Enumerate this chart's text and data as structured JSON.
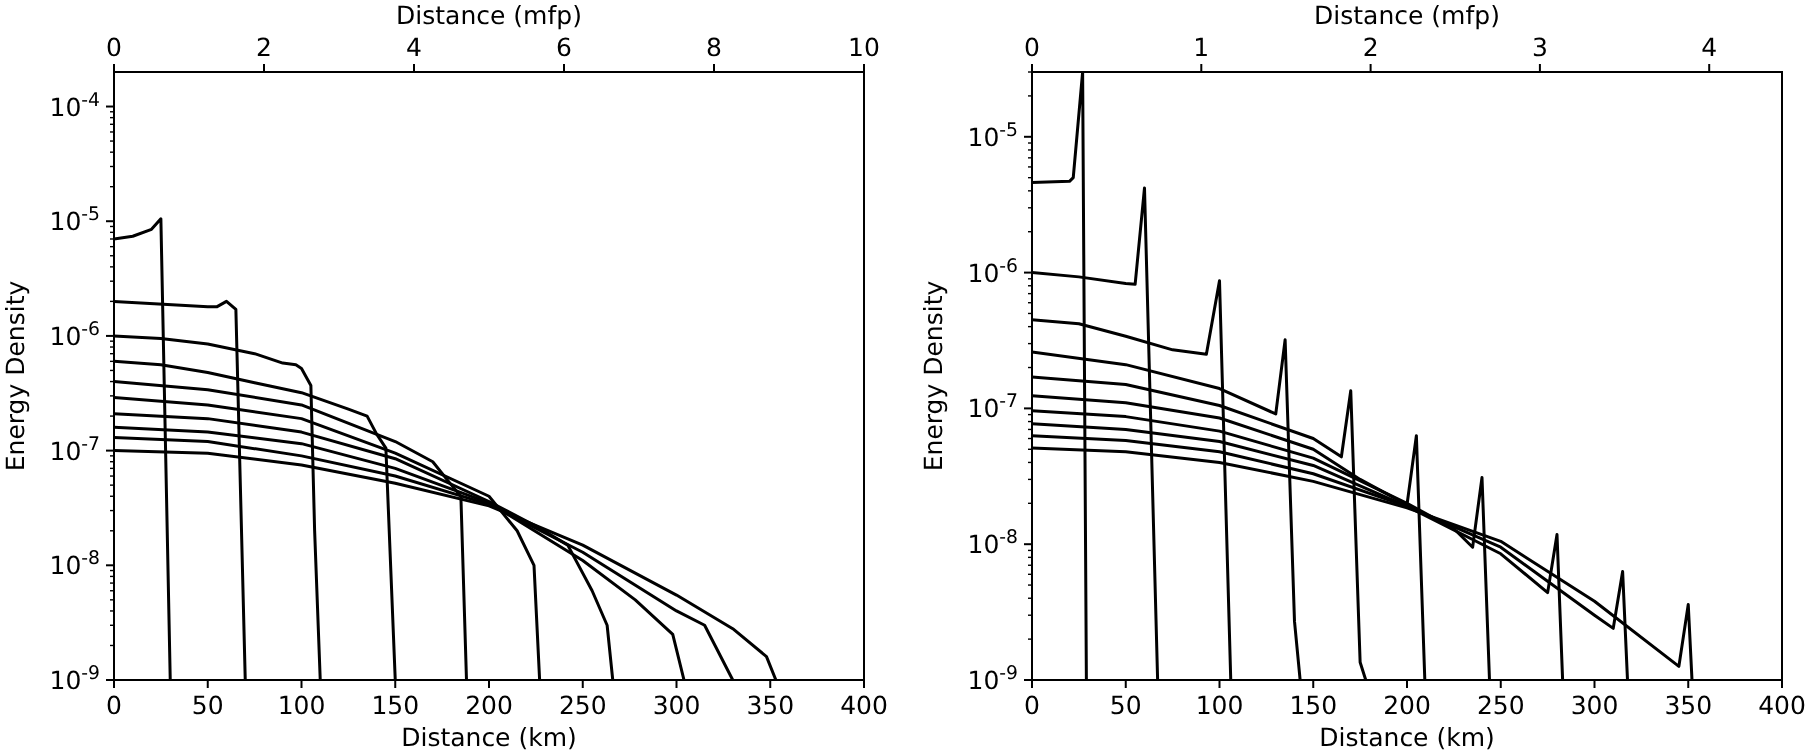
{
  "chart_data": [
    {
      "type": "line",
      "xlabel": "Distance (km)",
      "ylabel": "Energy Density",
      "x2label": "Distance (mfp)",
      "log": "y",
      "grid": false,
      "marker": "none",
      "line_style": "solid",
      "xlim": [
        0,
        400
      ],
      "xticks": [
        0,
        50,
        100,
        150,
        200,
        250,
        300,
        350,
        400
      ],
      "x2lim": [
        0,
        10
      ],
      "x2ticks": [
        0,
        2,
        4,
        6,
        8,
        10
      ],
      "ylim": [
        1e-09,
        0.0002
      ],
      "yticks": [
        {
          "value": 1e-09,
          "label": "10$^{-9}$"
        },
        {
          "value": 1e-08,
          "label": "10$^{-8}$"
        },
        {
          "value": 1e-07,
          "label": "10$^{-7}$"
        },
        {
          "value": 1e-06,
          "label": "10$^{-6}$"
        },
        {
          "value": 1e-05,
          "label": "10$^{-5}$"
        },
        {
          "value": 0.0001,
          "label": "10$^{-4}$"
        },
        {
          "value": 2e-09,
          "label": null
        },
        {
          "value": 3e-09,
          "label": null
        },
        {
          "value": 4e-09,
          "label": null
        },
        {
          "value": 5e-09,
          "label": null
        },
        {
          "value": 6e-09,
          "label": null
        },
        {
          "value": 7e-09,
          "label": null
        },
        {
          "value": 8e-09,
          "label": null
        },
        {
          "value": 9e-09,
          "label": null
        },
        {
          "value": 2e-08,
          "label": null
        },
        {
          "value": 3e-08,
          "label": null
        },
        {
          "value": 4e-08,
          "label": null
        },
        {
          "value": 5e-08,
          "label": null
        },
        {
          "value": 6e-08,
          "label": null
        },
        {
          "value": 7e-08,
          "label": null
        },
        {
          "value": 8e-08,
          "label": null
        },
        {
          "value": 9e-08,
          "label": null
        },
        {
          "value": 2e-07,
          "label": null
        },
        {
          "value": 3e-07,
          "label": null
        },
        {
          "value": 4e-07,
          "label": null
        },
        {
          "value": 5e-07,
          "label": null
        },
        {
          "value": 6e-07,
          "label": null
        },
        {
          "value": 7e-07,
          "label": null
        },
        {
          "value": 8e-07,
          "label": null
        },
        {
          "value": 9e-07,
          "label": null
        },
        {
          "value": 2e-06,
          "label": null
        },
        {
          "value": 3e-06,
          "label": null
        },
        {
          "value": 4e-06,
          "label": null
        },
        {
          "value": 5e-06,
          "label": null
        },
        {
          "value": 6e-06,
          "label": null
        },
        {
          "value": 7e-06,
          "label": null
        },
        {
          "value": 8e-06,
          "label": null
        },
        {
          "value": 9e-06,
          "label": null
        },
        {
          "value": 2e-05,
          "label": null
        },
        {
          "value": 3e-05,
          "label": null
        },
        {
          "value": 4e-05,
          "label": null
        },
        {
          "value": 5e-05,
          "label": null
        },
        {
          "value": 6e-05,
          "label": null
        },
        {
          "value": 7e-05,
          "label": null
        },
        {
          "value": 8e-05,
          "label": null
        },
        {
          "value": 9e-05,
          "label": null
        }
      ],
      "series": [
        {
          "color": "#000000",
          "x": [
            0,
            10,
            20,
            25,
            30
          ],
          "values": [
            7e-06,
            7.4e-06,
            8.5e-06,
            1.05e-05,
            1e-09
          ]
        },
        {
          "color": "#000000",
          "x": [
            0,
            50,
            55,
            60,
            65,
            68,
            70
          ],
          "values": [
            2e-06,
            1.8e-06,
            1.8e-06,
            2e-06,
            1.7e-06,
            2e-08,
            1e-09
          ]
        },
        {
          "color": "#000000",
          "x": [
            0,
            25,
            50,
            75,
            90,
            97,
            100,
            105,
            107,
            110
          ],
          "values": [
            1e-06,
            9.5e-07,
            8.5e-07,
            7e-07,
            5.8e-07,
            5.6e-07,
            5.2e-07,
            3.7e-07,
            2e-08,
            1e-09
          ]
        },
        {
          "color": "#000000",
          "x": [
            0,
            25,
            50,
            75,
            100,
            125,
            135,
            140,
            145,
            150
          ],
          "values": [
            6e-07,
            5.6e-07,
            4.8e-07,
            3.9e-07,
            3.2e-07,
            2.3e-07,
            2e-07,
            1.4e-07,
            1.05e-07,
            1e-09
          ]
        },
        {
          "color": "#000000",
          "x": [
            0,
            50,
            100,
            150,
            170,
            180,
            185,
            188
          ],
          "values": [
            4e-07,
            3.4e-07,
            2.5e-07,
            1.2e-07,
            8e-08,
            5e-08,
            4e-08,
            1e-09
          ]
        },
        {
          "color": "#000000",
          "x": [
            0,
            50,
            100,
            150,
            200,
            215,
            224,
            227
          ],
          "values": [
            2.9e-07,
            2.5e-07,
            1.9e-07,
            9.5e-08,
            4e-08,
            2e-08,
            1e-08,
            1e-09
          ]
        },
        {
          "color": "#000000",
          "x": [
            0,
            50,
            100,
            150,
            200,
            225,
            242,
            255,
            263,
            266
          ],
          "values": [
            2.1e-07,
            1.9e-07,
            1.45e-07,
            8.5e-08,
            3.6e-08,
            2.2e-08,
            1.5e-08,
            6e-09,
            3e-09,
            1e-09
          ]
        },
        {
          "color": "#000000",
          "x": [
            0,
            50,
            100,
            150,
            200,
            250,
            278,
            298,
            304
          ],
          "values": [
            1.6e-07,
            1.45e-07,
            1.15e-07,
            7e-08,
            3.5e-08,
            1.1e-08,
            5e-09,
            2.5e-09,
            1e-09
          ]
        },
        {
          "color": "#000000",
          "x": [
            0,
            50,
            100,
            150,
            200,
            250,
            300,
            315,
            330
          ],
          "values": [
            1.3e-07,
            1.2e-07,
            9e-08,
            6e-08,
            3.4e-08,
            1.3e-08,
            4e-09,
            3e-09,
            1e-09
          ]
        },
        {
          "color": "#000000",
          "x": [
            0,
            50,
            100,
            150,
            200,
            250,
            300,
            330,
            348,
            353
          ],
          "values": [
            1e-07,
            9.5e-08,
            7.5e-08,
            5.2e-08,
            3.3e-08,
            1.5e-08,
            5.5e-09,
            2.8e-09,
            1.6e-09,
            1e-09
          ]
        }
      ]
    },
    {
      "type": "line",
      "xlabel": "Distance (km)",
      "ylabel": "Energy Density",
      "x2label": "Distance (mfp)",
      "log": "y",
      "grid": false,
      "marker": "none",
      "line_style": "solid",
      "xlim": [
        0,
        400
      ],
      "xticks": [
        0,
        50,
        100,
        150,
        200,
        250,
        300,
        350,
        400
      ],
      "x2lim": [
        0,
        4.43
      ],
      "x2ticks": [
        0,
        1,
        2,
        3,
        4
      ],
      "ylim": [
        1e-09,
        3e-05
      ],
      "yticks": [
        {
          "value": 1e-09,
          "label": "10$^{-9}$"
        },
        {
          "value": 1e-08,
          "label": "10$^{-8}$"
        },
        {
          "value": 1e-07,
          "label": "10$^{-7}$"
        },
        {
          "value": 1e-06,
          "label": "10$^{-6}$"
        },
        {
          "value": 1e-05,
          "label": "10$^{-5}$"
        },
        {
          "value": 2e-09,
          "label": null
        },
        {
          "value": 3e-09,
          "label": null
        },
        {
          "value": 4e-09,
          "label": null
        },
        {
          "value": 5e-09,
          "label": null
        },
        {
          "value": 6e-09,
          "label": null
        },
        {
          "value": 7e-09,
          "label": null
        },
        {
          "value": 8e-09,
          "label": null
        },
        {
          "value": 9e-09,
          "label": null
        },
        {
          "value": 2e-08,
          "label": null
        },
        {
          "value": 3e-08,
          "label": null
        },
        {
          "value": 4e-08,
          "label": null
        },
        {
          "value": 5e-08,
          "label": null
        },
        {
          "value": 6e-08,
          "label": null
        },
        {
          "value": 7e-08,
          "label": null
        },
        {
          "value": 8e-08,
          "label": null
        },
        {
          "value": 9e-08,
          "label": null
        },
        {
          "value": 2e-07,
          "label": null
        },
        {
          "value": 3e-07,
          "label": null
        },
        {
          "value": 4e-07,
          "label": null
        },
        {
          "value": 5e-07,
          "label": null
        },
        {
          "value": 6e-07,
          "label": null
        },
        {
          "value": 7e-07,
          "label": null
        },
        {
          "value": 8e-07,
          "label": null
        },
        {
          "value": 9e-07,
          "label": null
        },
        {
          "value": 2e-06,
          "label": null
        },
        {
          "value": 3e-06,
          "label": null
        },
        {
          "value": 4e-06,
          "label": null
        },
        {
          "value": 5e-06,
          "label": null
        },
        {
          "value": 6e-06,
          "label": null
        },
        {
          "value": 7e-06,
          "label": null
        },
        {
          "value": 8e-06,
          "label": null
        },
        {
          "value": 9e-06,
          "label": null
        },
        {
          "value": 2e-05,
          "label": null
        },
        {
          "value": 3e-05,
          "label": null
        }
      ],
      "series": [
        {
          "color": "#000000",
          "x": [
            0,
            20,
            22,
            27,
            29
          ],
          "values": [
            4.6e-06,
            4.7e-06,
            5e-06,
            3e-05,
            1e-09
          ]
        },
        {
          "color": "#000000",
          "x": [
            0,
            25,
            50,
            55,
            60,
            67
          ],
          "values": [
            1e-06,
            9.3e-07,
            8.3e-07,
            8.2e-07,
            4.2e-06,
            1e-09
          ]
        },
        {
          "color": "#000000",
          "x": [
            0,
            25,
            50,
            75,
            93,
            100,
            106
          ],
          "values": [
            4.5e-07,
            4.2e-07,
            3.4e-07,
            2.7e-07,
            2.5e-07,
            8.7e-07,
            1e-09
          ]
        },
        {
          "color": "#000000",
          "x": [
            0,
            50,
            100,
            130,
            135,
            140,
            143
          ],
          "values": [
            2.6e-07,
            2.1e-07,
            1.4e-07,
            9.1e-08,
            3.2e-07,
            2.7e-09,
            1e-09
          ]
        },
        {
          "color": "#000000",
          "x": [
            0,
            50,
            100,
            150,
            165,
            170,
            175,
            178
          ],
          "values": [
            1.7e-07,
            1.5e-07,
            1.05e-07,
            6e-08,
            4.4e-08,
            1.35e-07,
            1.35e-09,
            1e-09
          ]
        },
        {
          "color": "#000000",
          "x": [
            0,
            50,
            100,
            150,
            175,
            200,
            205,
            209.5
          ],
          "values": [
            1.24e-07,
            1.1e-07,
            8.5e-08,
            5e-08,
            3e-08,
            1.95e-08,
            6.3e-08,
            1e-09
          ]
        },
        {
          "color": "#000000",
          "x": [
            0,
            50,
            100,
            150,
            200,
            225,
            235,
            240,
            244
          ],
          "values": [
            9.6e-08,
            8.7e-08,
            6.8e-08,
            4.3e-08,
            2e-08,
            1.3e-08,
            9.5e-09,
            3.1e-08,
            1e-09
          ]
        },
        {
          "color": "#000000",
          "x": [
            0,
            50,
            100,
            150,
            200,
            250,
            275,
            280,
            283
          ],
          "values": [
            7.7e-08,
            7e-08,
            5.7e-08,
            3.8e-08,
            1.9e-08,
            8.5e-09,
            4.4e-09,
            1.18e-08,
            1e-09
          ]
        },
        {
          "color": "#000000",
          "x": [
            0,
            50,
            100,
            150,
            200,
            250,
            300,
            310,
            315,
            317.6
          ],
          "values": [
            6.3e-08,
            5.8e-08,
            4.8e-08,
            3.3e-08,
            1.9e-08,
            9.5e-09,
            3e-09,
            2.4e-09,
            6.3e-09,
            1e-09
          ]
        },
        {
          "color": "#000000",
          "x": [
            0,
            50,
            100,
            150,
            200,
            250,
            300,
            345,
            350,
            352
          ],
          "values": [
            5.1e-08,
            4.8e-08,
            4e-08,
            2.9e-08,
            1.85e-08,
            1.05e-08,
            3.8e-09,
            1.26e-09,
            3.6e-09,
            1e-09
          ]
        }
      ]
    }
  ]
}
